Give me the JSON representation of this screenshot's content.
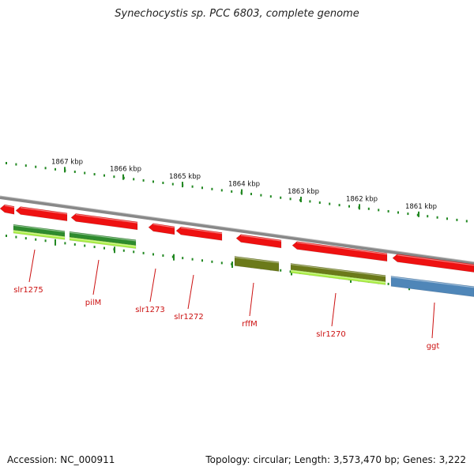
{
  "title": "Synechocystis sp. PCC 6803, complete genome",
  "footer": {
    "accession": "Accession: NC_000911",
    "topology": "Topology: circular; Length: 3,573,470 bp; Genes: 3,222"
  },
  "ruler": {
    "ticks": [
      "1867 kbp",
      "1866 kbp",
      "1865 kbp",
      "1864 kbp",
      "1863 kbp",
      "1862 kbp",
      "1861 kbp"
    ],
    "tick_color": "#228822"
  },
  "colors": {
    "backbone": "#888888",
    "forward_gene": "#ee1111",
    "reverse_gene_green": "#2e8b2e",
    "reverse_gene_lime": "#aaee44",
    "reverse_gene_olive": "#6b7a1a",
    "reverse_gene_blue": "#4f86b8",
    "label": "#cc1111"
  },
  "genes": [
    {
      "name": "slr1275"
    },
    {
      "name": "pilM"
    },
    {
      "name": "slr1273"
    },
    {
      "name": "slr1272"
    },
    {
      "name": "rffM"
    },
    {
      "name": "slr1270"
    },
    {
      "name": "ggt"
    }
  ]
}
